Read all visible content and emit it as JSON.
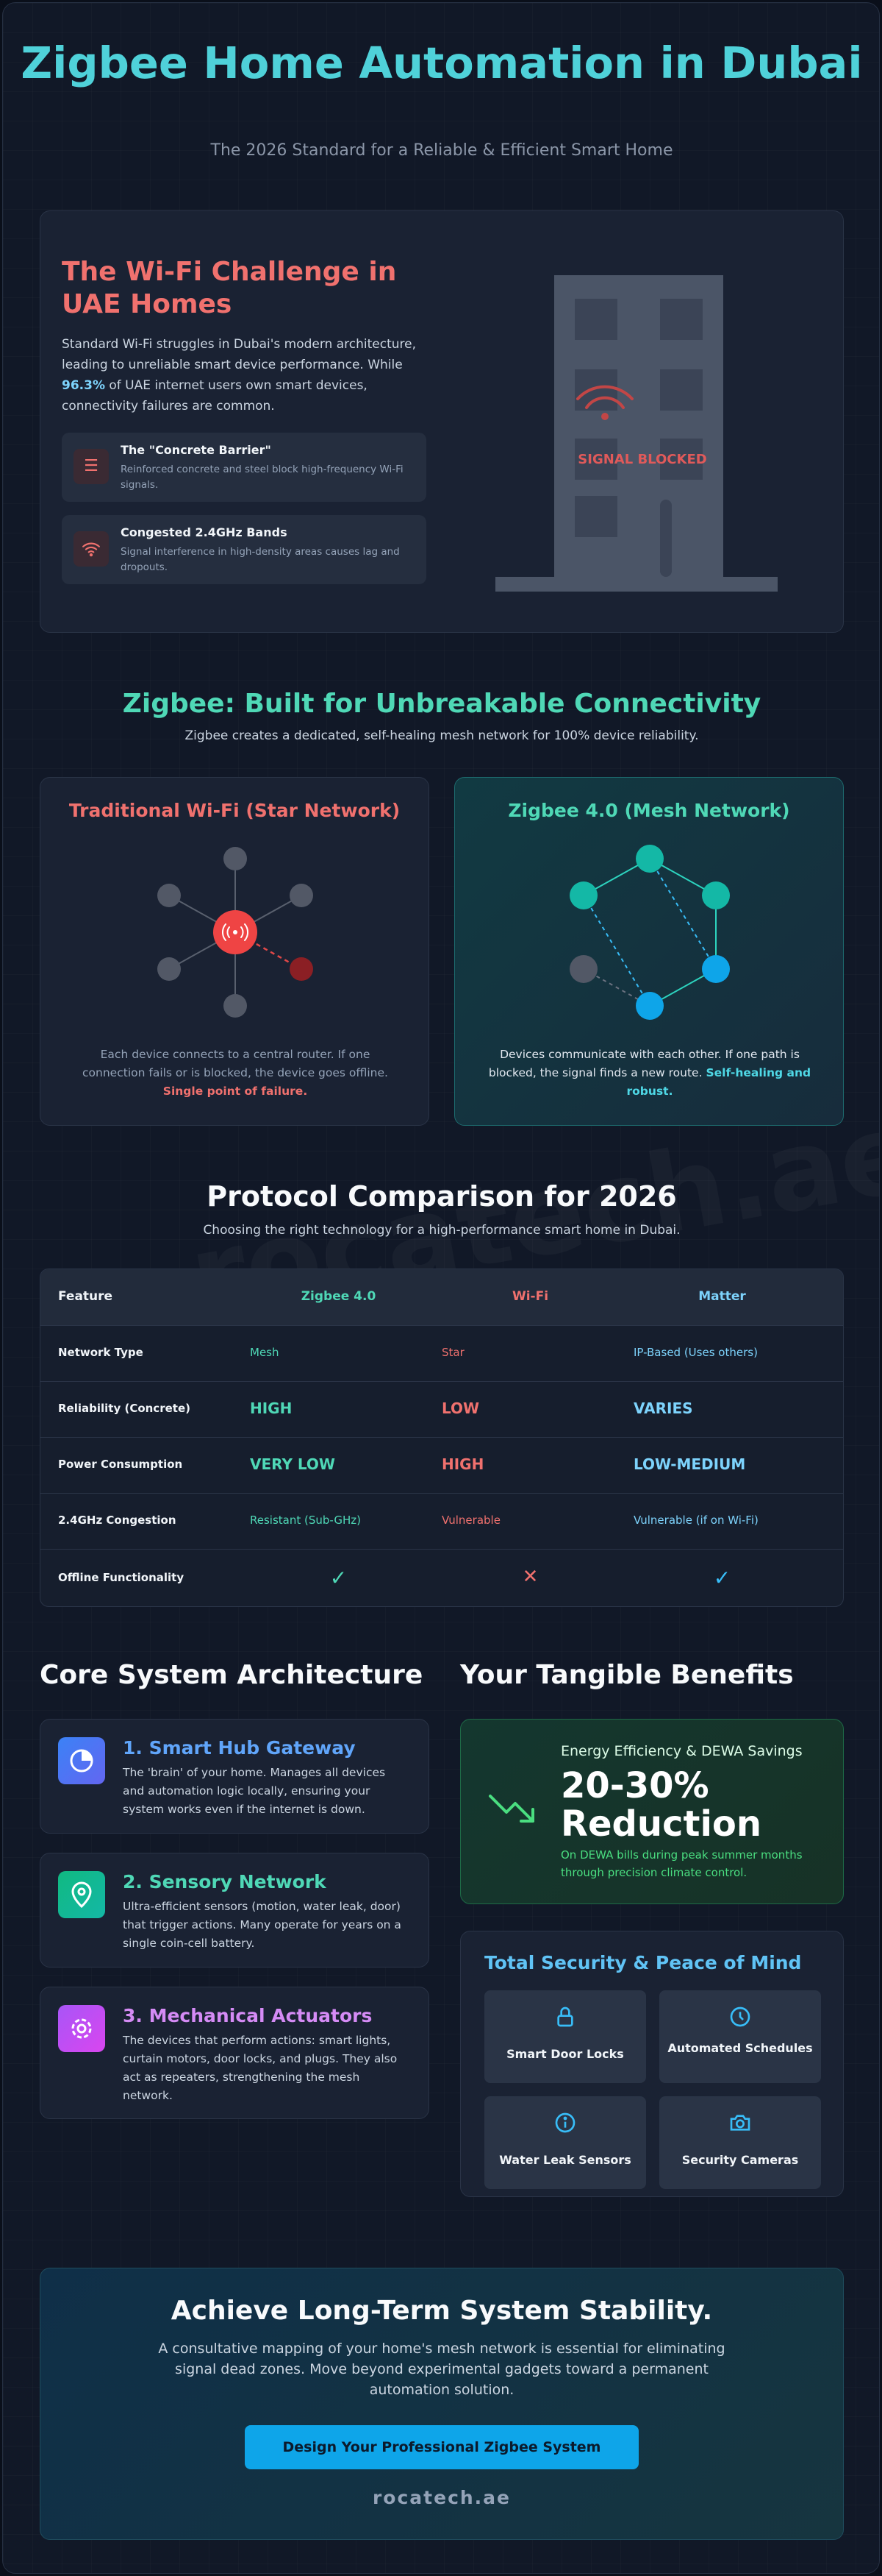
{
  "header": {
    "title": "Zigbee Home Automation in Dubai",
    "subtitle": "The 2026 Standard for a Reliable & Efficient Smart Home"
  },
  "challenge": {
    "title": "The Wi-Fi Challenge in UAE Homes",
    "text_before": "Standard Wi-Fi struggles in Dubai's modern architecture, leading to unreliable smart device performance. While ",
    "highlight": "96.3%",
    "text_after": " of UAE internet users own smart devices, connectivity failures are common.",
    "items": [
      {
        "title": "The \"Concrete Barrier\"",
        "desc": "Reinforced concrete and steel block high-frequency Wi-Fi signals.",
        "icon": "list-icon"
      },
      {
        "title": "Congested 2.4GHz Bands",
        "desc": "Signal interference in high-density areas causes lag and dropouts.",
        "icon": "wifi-icon"
      }
    ],
    "blocked_label": "SIGNAL BLOCKED"
  },
  "connectivity": {
    "title": "Zigbee: Built for Unbreakable Connectivity",
    "subtitle": "Zigbee creates a dedicated, self-healing mesh network for 100% device reliability.",
    "star": {
      "title": "Traditional Wi-Fi (Star Network)",
      "desc": "Each device connects to a central router. If one connection fails or is blocked, the device goes offline.",
      "emphasis": "Single point of failure."
    },
    "mesh": {
      "title": "Zigbee 4.0 (Mesh Network)",
      "desc": "Devices communicate with each other. If one path is blocked, the signal finds a new route.",
      "emphasis": "Self-healing and robust."
    }
  },
  "comparison": {
    "title": "Protocol Comparison for 2026",
    "subtitle": "Choosing the right technology for a high-performance smart home in Dubai.",
    "watermark": "rocatech.ae",
    "headers": [
      "Feature",
      "Zigbee 4.0",
      "Wi-Fi",
      "Matter"
    ],
    "rows": [
      {
        "feature": "Network Type",
        "zigbee": "Mesh",
        "wifi": "Star",
        "matter": "IP-Based (Uses others)"
      },
      {
        "feature": "Reliability (Concrete)",
        "zigbee": "HIGH",
        "wifi": "LOW",
        "matter": "VARIES"
      },
      {
        "feature": "Power Consumption",
        "zigbee": "VERY LOW",
        "wifi": "HIGH",
        "matter": "LOW-MEDIUM"
      },
      {
        "feature": "2.4GHz Congestion",
        "zigbee": "Resistant (Sub-GHz)",
        "wifi": "Vulnerable",
        "matter": "Vulnerable (if on Wi-Fi)"
      },
      {
        "feature": "Offline Functionality",
        "zigbee": "✓",
        "wifi": "✕",
        "matter": "✓"
      }
    ]
  },
  "architecture": {
    "title": "Core System Architecture",
    "items": [
      {
        "title": "1. Smart Hub Gateway",
        "desc": "The 'brain' of your home. Manages all devices and automation logic locally, ensuring your system works even if the internet is down.",
        "color": "#60a5fa"
      },
      {
        "title": "2. Sensory Network",
        "desc": "Ultra-efficient sensors (motion, water leak, door) that trigger actions. Many operate for years on a single coin-cell battery.",
        "color": "#4fd8b6"
      },
      {
        "title": "3. Mechanical Actuators",
        "desc": "The devices that perform actions: smart lights, curtain motors, door locks, and plugs. They also act as repeaters, strengthening the mesh network.",
        "color": "#d58bf5"
      }
    ]
  },
  "benefits": {
    "title": "Your Tangible Benefits",
    "energy": {
      "label": "Energy Efficiency & DEWA Savings",
      "value_line1": "20-30%",
      "value_line2": "Reduction",
      "desc": "On DEWA bills during peak summer months through precision climate control."
    },
    "security": {
      "title": "Total Security & Peace of Mind",
      "features": [
        {
          "label": "Smart Door Locks",
          "icon": "lock-icon"
        },
        {
          "label": "Automated Schedules",
          "icon": "clock-icon"
        },
        {
          "label": "Water Leak Sensors",
          "icon": "info-icon"
        },
        {
          "label": "Security Cameras",
          "icon": "camera-icon"
        }
      ]
    }
  },
  "cta": {
    "title": "Achieve Long-Term System Stability.",
    "text": "A consultative mapping of your home's mesh network is essential for eliminating signal dead zones. Move beyond experimental gadgets toward a permanent automation solution.",
    "button": "Design Your Professional Zigbee System",
    "site": "rocatech.ae"
  },
  "colors": {
    "accent_teal": "#4fd1d9",
    "alert_red": "#f0716e",
    "zigbee_green": "#4fd8b6",
    "matter_blue": "#7dd3fc",
    "button_blue": "#0ea5e9"
  }
}
